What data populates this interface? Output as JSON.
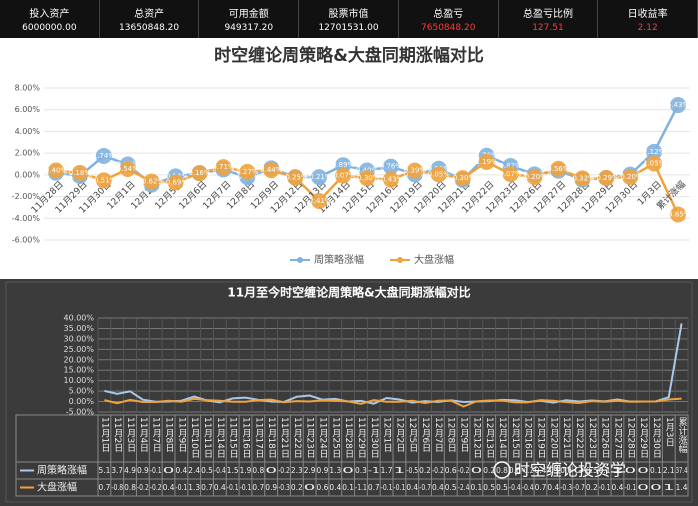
{
  "header": {
    "items": [
      {
        "label": "投入资产",
        "value": "6000000.00",
        "color": "#ffffff"
      },
      {
        "label": "总资产",
        "value": "13650848.20",
        "color": "#ffffff"
      },
      {
        "label": "可用金额",
        "value": "949317.20",
        "color": "#ffffff"
      },
      {
        "label": "股票市值",
        "value": "12701531.00",
        "color": "#ffffff"
      },
      {
        "label": "总盈亏",
        "value": "7650848.20",
        "color": "#ff3b3b"
      },
      {
        "label": "总盈亏比例",
        "value": "127.51",
        "color": "#ff3b3b"
      },
      {
        "label": "日收益率",
        "value": "2.12",
        "color": "#ff3b3b"
      }
    ]
  },
  "chart_data": [
    {
      "type": "line",
      "title": "时空缠论周策略&大盘同期涨幅对比",
      "categories": [
        "11月28日",
        "11月29日",
        "11月30日",
        "12月1日",
        "12月2日",
        "12月5日",
        "12月6日",
        "12月7日",
        "12月8日",
        "12月9日",
        "12月12日",
        "12月13日",
        "12月14日",
        "12月15日",
        "12月16日",
        "12月19日",
        "12月20日",
        "12月21日",
        "12月22日",
        "12月23日",
        "12月26日",
        "12月27日",
        "12月28日",
        "12月29日",
        "12月30日",
        "1月3日",
        "累计涨幅"
      ],
      "series": [
        {
          "name": "周策略涨幅",
          "color": "#7fb2e0",
          "values": [
            0.2,
            -0.1,
            1.74,
            0.95,
            -0.9,
            -0.14,
            0.16,
            0.5,
            -0.21,
            0.6,
            -0.21,
            -0.21,
            0.89,
            0.4,
            0.76,
            0.05,
            0.56,
            -0.46,
            1.76,
            0.82,
            0.05,
            0.38,
            -0.44,
            -0.29,
            0.02,
            2.12,
            6.43
          ],
          "value_labels": [
            "0.20%",
            "-0.10%",
            "1.74%",
            "0.95%",
            "-0.90%",
            "-0.14%",
            "0.16%",
            "0.50%",
            "-0.21%",
            "0.60%",
            "-0.21%",
            "-0.21%",
            "0.89%",
            "0.40%",
            "0.76%",
            "0.05%",
            "0.56%",
            "-0.46%",
            "1.76%",
            "0.82%",
            "0.05%",
            "0.38%",
            "-0.44%",
            "-0.29%",
            "0.02%",
            "2.12%",
            "6.43%"
          ]
        },
        {
          "name": "大盘涨幅",
          "color": "#f0a23c",
          "values": [
            0.4,
            0.18,
            -0.51,
            0.54,
            -0.62,
            -0.69,
            0.16,
            0.71,
            0.27,
            0.44,
            -0.25,
            -2.41,
            -0.07,
            -0.3,
            -0.43,
            0.39,
            0.05,
            -0.3,
            1.19,
            0.07,
            -0.2,
            0.56,
            -0.32,
            -0.29,
            -0.2,
            1.05,
            -3.65
          ],
          "value_labels": [
            "0.40%",
            "0.18%",
            "-0.51%",
            "0.54%",
            "-0.62%",
            "-0.69%",
            "0.16%",
            "0.71%",
            "0.27%",
            "0.44%",
            "-0.25%",
            "-2.41%",
            "-0.07%",
            "-0.30%",
            "-0.43%",
            "0.39%",
            "0.05%",
            "-0.30%",
            "1.19%",
            "0.07%",
            "-0.20%",
            "0.56%",
            "-0.32%",
            "-0.29%",
            "-0.20%",
            "1.05%",
            "-3.65%"
          ]
        }
      ],
      "ylim": [
        -6,
        8
      ],
      "yticks": [
        {
          "value": -6,
          "label": "-6.00%"
        },
        {
          "value": -4,
          "label": "-4.00%"
        },
        {
          "value": -2,
          "label": "-2.00%"
        },
        {
          "value": 0,
          "label": "0.00%"
        },
        {
          "value": 2,
          "label": "2.00%"
        },
        {
          "value": 4,
          "label": "4.00%"
        },
        {
          "value": 6,
          "label": "6.00%"
        },
        {
          "value": 8,
          "label": "8.00%"
        }
      ],
      "grid": true,
      "legend": "bottom"
    },
    {
      "type": "line",
      "title": "11月至今时空缠论周策略&大盘同期涨幅对比",
      "categories": [
        "11月1日",
        "11月2日",
        "11月3日",
        "11月4日",
        "11月7日",
        "11月8日",
        "11月9日",
        "11月10日",
        "11月11日",
        "11月14日",
        "11月15日",
        "11月16日",
        "11月17日",
        "11月18日",
        "11月21日",
        "11月22日",
        "11月23日",
        "11月24日",
        "11月25日",
        "11月28日",
        "11月29日",
        "11月30日",
        "12月1日",
        "12月2日",
        "12月5日",
        "12月6日",
        "12月7日",
        "12月8日",
        "12月9日",
        "12月12日",
        "12月13日",
        "12月14日",
        "12月15日",
        "12月16日",
        "12月19日",
        "12月20日",
        "12月21日",
        "12月22日",
        "12月23日",
        "12月26日",
        "12月27日",
        "12月28日",
        "12月29日",
        "12月30日",
        "1月3日",
        "累计涨幅"
      ],
      "series": [
        {
          "name": "周策略涨幅",
          "color": "#a9c8ea",
          "values": [
            5.1,
            3.7,
            4.9,
            0.9,
            -0.1,
            0.0,
            0.4,
            2.4,
            0.5,
            -0.4,
            1.5,
            1.9,
            0.8,
            0.0,
            -0.2,
            2.3,
            2.9,
            0.9,
            1.3,
            0.0,
            0.3,
            -1.0,
            1.7,
            1.0,
            -0.5,
            0.2,
            -0.2,
            0.6,
            -0.2,
            0.0,
            0.2,
            0.8,
            0.6,
            -0.2,
            0.4,
            -0.5,
            0.6,
            0.0,
            0.5,
            0.1,
            1.0,
            0.0,
            0.0,
            0.1,
            2.1,
            37.4
          ]
        },
        {
          "name": "大盘涨幅",
          "color": "#f0a23c",
          "values": [
            0.7,
            -0.8,
            0.8,
            -0.2,
            -0.2,
            0.4,
            -0.1,
            1.3,
            0.7,
            0.4,
            -0.1,
            -0.1,
            0.7,
            0.9,
            -0.3,
            0.2,
            0.0,
            0.6,
            0.4,
            0.1,
            -1.1,
            0.7,
            -0.1,
            -0.1,
            0.4,
            -0.7,
            0.4,
            0.5,
            -2.4,
            0.1,
            0.5,
            0.5,
            -0.4,
            -0.4,
            0.7,
            0.4,
            -0.3,
            -0.7,
            0.2,
            -0.1,
            0.4,
            -0.1,
            0.0,
            0.0,
            1.0,
            1.4
          ]
        }
      ],
      "ylim": [
        -5,
        40
      ],
      "yticks": [
        {
          "value": -5,
          "label": "-5.00%"
        },
        {
          "value": 0,
          "label": "0.00%"
        },
        {
          "value": 5,
          "label": "5.00%"
        },
        {
          "value": 10,
          "label": "10.00%"
        },
        {
          "value": 15,
          "label": "15.00%"
        },
        {
          "value": 20,
          "label": "20.00%"
        },
        {
          "value": 25,
          "label": "25.00%"
        },
        {
          "value": 30,
          "label": "30.00%"
        },
        {
          "value": 35,
          "label": "35.00%"
        },
        {
          "value": 40,
          "label": "40.00%"
        }
      ],
      "grid": true,
      "legend": "table"
    }
  ],
  "watermark": "时空缠论投资学"
}
